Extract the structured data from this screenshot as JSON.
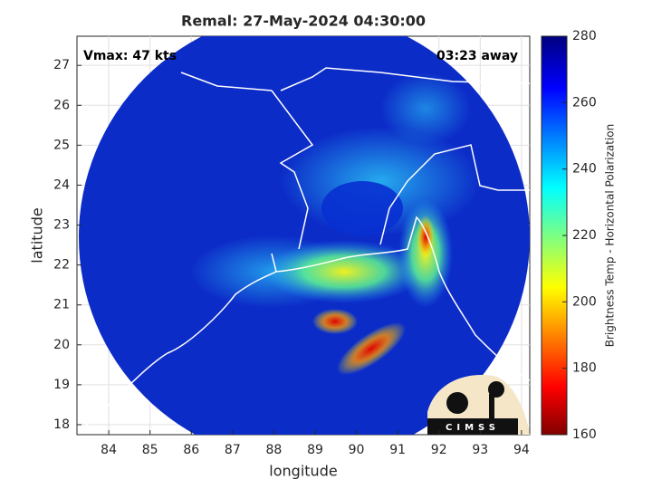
{
  "chart_data": {
    "type": "map",
    "title": "Remal: 27-May-2024 04:30:00",
    "annotations": [
      "Vmax: 47 kts",
      "03:23 away"
    ],
    "xlabel": "longitude",
    "ylabel": "latitude",
    "xlim": [
      83.23,
      94.2
    ],
    "ylim": [
      17.75,
      27.73
    ],
    "xticks": [
      84,
      85,
      86,
      87,
      88,
      89,
      90,
      91,
      92,
      93,
      94
    ],
    "yticks": [
      18,
      19,
      20,
      21,
      22,
      23,
      24,
      25,
      26,
      27
    ],
    "grid": true,
    "colorbar": {
      "label": "Brightness Temp - Horizontal Polarization",
      "lim": [
        160,
        280
      ],
      "ticks": [
        160,
        180,
        200,
        220,
        240,
        260,
        280
      ]
    },
    "logo": "CIMSS"
  }
}
